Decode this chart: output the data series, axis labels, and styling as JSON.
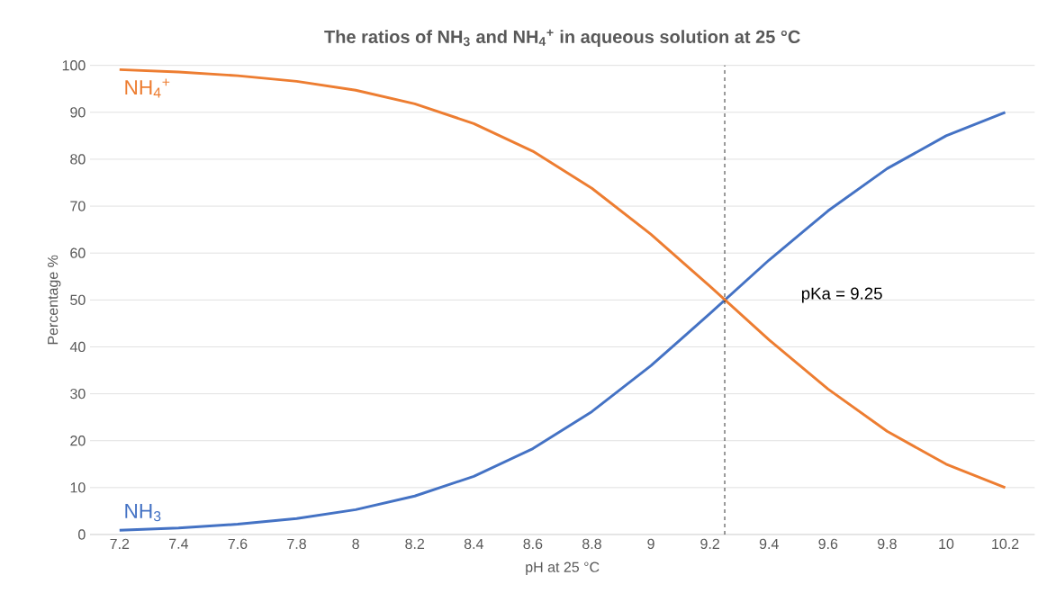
{
  "chart_data": {
    "type": "line",
    "title": "The ratios of NH$_{3}$ and NH$_{4}$$^{+}$ in aqueous solution at 25 °C",
    "xlabel": "pH at 25 °C",
    "ylabel": "Percentage %",
    "x": [
      7.2,
      7.4,
      7.6,
      7.8,
      8,
      8.2,
      8.4,
      8.6,
      8.8,
      9,
      9.2,
      9.4,
      9.6,
      9.8,
      10,
      10.2
    ],
    "series": [
      {
        "name": "NH$_{3}$",
        "color": "#4472c4",
        "values": [
          0.9,
          1.4,
          2.2,
          3.4,
          5.3,
          8.2,
          12.4,
          18.3,
          26.2,
          36,
          47.1,
          58.5,
          69,
          78,
          85,
          90
        ]
      },
      {
        "name": "NH$_{4}$$^{+}$",
        "color": "#ed7d31",
        "values": [
          99.1,
          98.6,
          97.8,
          96.6,
          94.7,
          91.8,
          87.6,
          81.7,
          73.8,
          64,
          52.9,
          41.5,
          31,
          22,
          15,
          10
        ]
      }
    ],
    "xlim": [
      7.1,
      10.3
    ],
    "xticks": [
      7.2,
      7.4,
      7.6,
      7.8,
      8,
      8.2,
      8.4,
      8.6,
      8.8,
      9,
      9.2,
      9.4,
      9.6,
      9.8,
      10,
      10.2
    ],
    "ylim": [
      0,
      100
    ],
    "yticks": [
      0,
      10,
      20,
      30,
      40,
      50,
      60,
      70,
      80,
      90,
      100
    ],
    "grid": "y",
    "legend": false,
    "marker": "none",
    "line_style": "solid",
    "ref_lines": [
      {
        "axis": "x",
        "value": 9.25,
        "label": "pKa = 9.25",
        "color": "#000000",
        "line_style": "dashed"
      }
    ]
  }
}
